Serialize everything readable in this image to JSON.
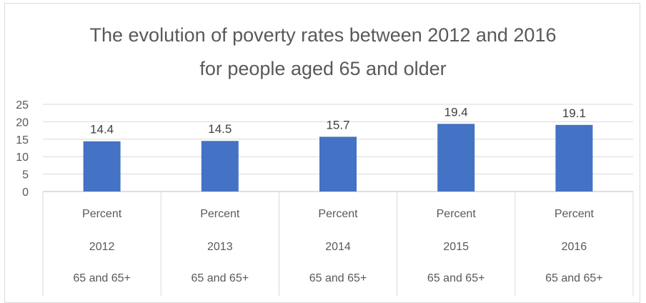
{
  "chart_data": {
    "type": "bar",
    "title_line1": "The evolution of poverty rates between 2012 and 2016",
    "title_line2": "for people aged 65 and older",
    "categories": [
      {
        "measure": "Percent",
        "year": "2012",
        "group": "65 and 65+"
      },
      {
        "measure": "Percent",
        "year": "2013",
        "group": "65 and 65+"
      },
      {
        "measure": "Percent",
        "year": "2014",
        "group": "65 and 65+"
      },
      {
        "measure": "Percent",
        "year": "2015",
        "group": "65 and 65+"
      },
      {
        "measure": "Percent",
        "year": "2016",
        "group": "65 and 65+"
      }
    ],
    "values": [
      14.4,
      14.5,
      15.7,
      19.4,
      19.1
    ],
    "ylim": [
      0,
      25
    ],
    "yticks": [
      0,
      5,
      10,
      15,
      20,
      25
    ],
    "grid": true,
    "legend": "none",
    "bar_color": "#4472C4"
  }
}
